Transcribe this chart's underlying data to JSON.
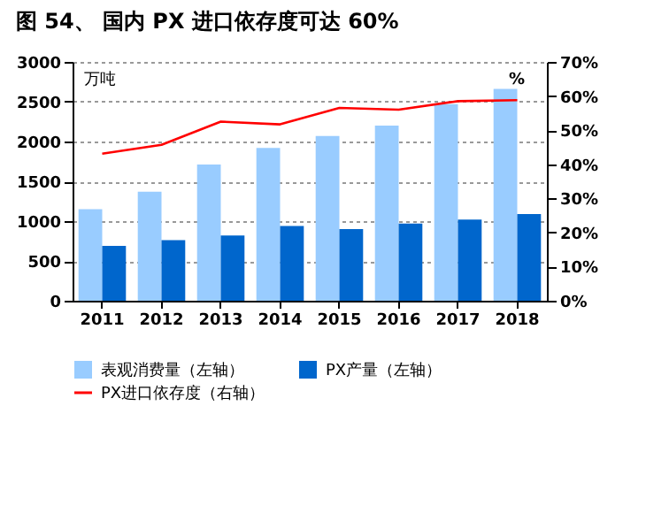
{
  "chart_data": {
    "type": "bar",
    "title": "图 54、 国内 PX 进口依存度可达 60%",
    "ylabel": "万吨",
    "y2label": "%",
    "categories": [
      "2011",
      "2012",
      "2013",
      "2014",
      "2015",
      "2016",
      "2017",
      "2018"
    ],
    "series": [
      {
        "name": "表观消费量（左轴）",
        "color": "#99ccff",
        "values": [
          1150,
          1370,
          1710,
          1920,
          2070,
          2200,
          2470,
          2660
        ]
      },
      {
        "name": "PX产量（左轴）",
        "color": "#0066cc",
        "values": [
          690,
          760,
          820,
          940,
          900,
          970,
          1020,
          1090
        ]
      },
      {
        "name": "PX进口依存度（右轴）",
        "type": "line",
        "axis": "y2",
        "color": "#ff0000",
        "values": [
          43.1,
          45.7,
          52.5,
          51.7,
          56.5,
          56.0,
          58.5,
          58.8
        ]
      }
    ],
    "ylim": [
      0,
      3000
    ],
    "yticks": [
      0,
      500,
      1000,
      1500,
      2000,
      2500,
      3000
    ],
    "y2lim": [
      0,
      70
    ],
    "y2ticks": [
      {
        "value": 0,
        "label": "0%"
      },
      {
        "value": 10,
        "label": "10%"
      },
      {
        "value": 20,
        "label": "20%"
      },
      {
        "value": 30,
        "label": "30%"
      },
      {
        "value": 40,
        "label": "40%"
      },
      {
        "value": 50,
        "label": "50%"
      },
      {
        "value": 60,
        "label": "60%"
      },
      {
        "value": 70,
        "label": "70%"
      }
    ],
    "grid": "y",
    "legend": "bottom",
    "marker": "none",
    "line_style": "solid"
  }
}
